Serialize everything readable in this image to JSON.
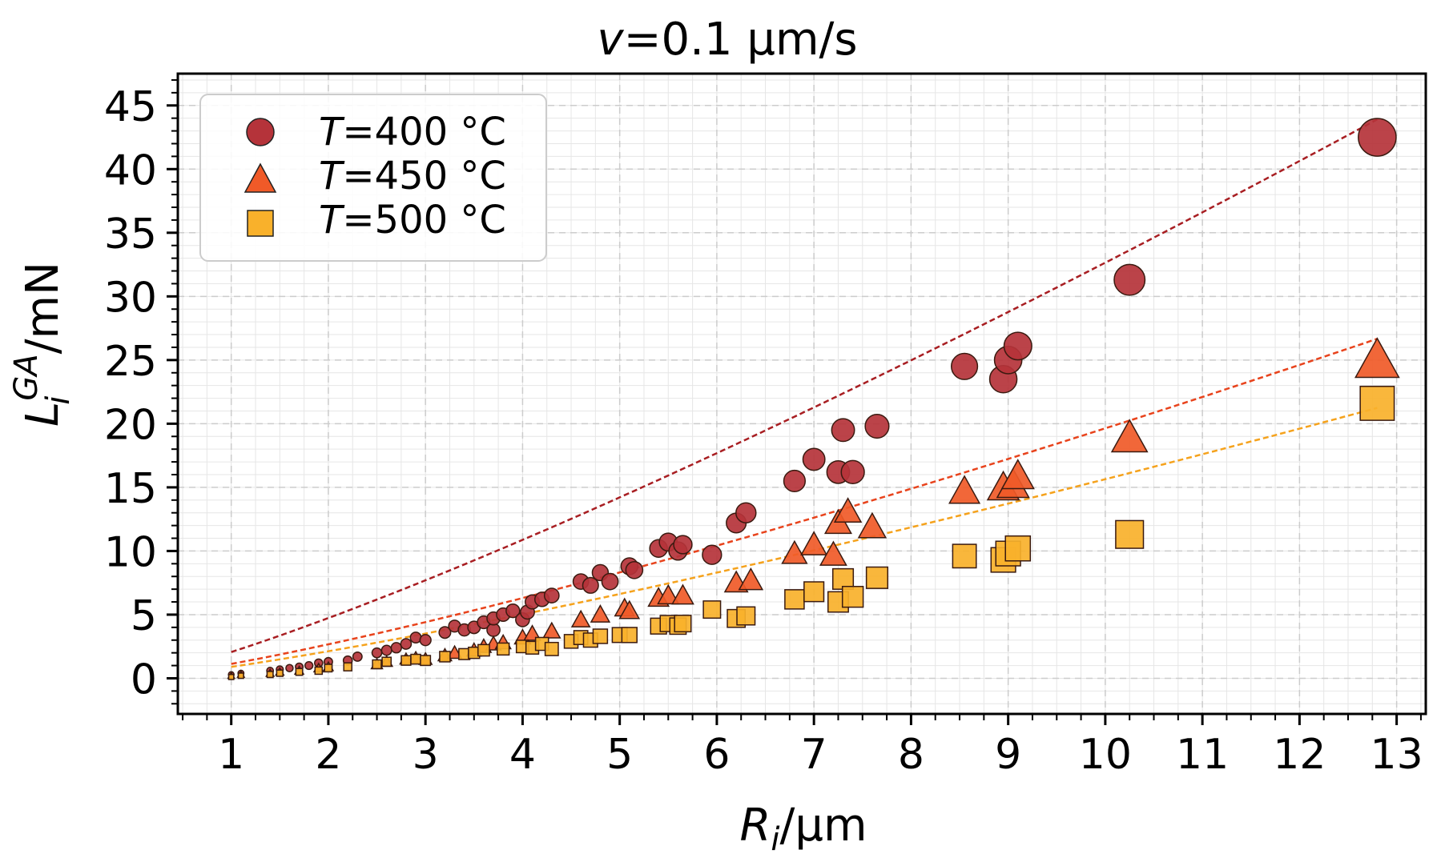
{
  "chart_data": {
    "type": "scatter",
    "title": {
      "italic": "v",
      "rest": "=0.1 μm/s"
    },
    "xlabel": {
      "italic": "R",
      "sub": "i",
      "rest": "/μm"
    },
    "ylabel": {
      "italic": "L",
      "sub": "i",
      "sup": "GA",
      "rest": "/mN"
    },
    "xlim": [
      0.45,
      13.3
    ],
    "ylim": [
      -2.8,
      47.5
    ],
    "xticks": [
      1,
      2,
      3,
      4,
      5,
      6,
      7,
      8,
      9,
      10,
      11,
      12,
      13
    ],
    "xtick_labels": [
      "1",
      "2",
      "3",
      "4",
      "5",
      "6",
      "7",
      "8",
      "9",
      "10",
      "11",
      "12",
      "13"
    ],
    "yticks": [
      0,
      5,
      10,
      15,
      20,
      25,
      30,
      35,
      40,
      45
    ],
    "ytick_labels": [
      "0",
      "5",
      "10",
      "15",
      "20",
      "25",
      "30",
      "35",
      "40",
      "45"
    ],
    "x_minor_step": 0.25,
    "y_minor_step": 1,
    "grid": true,
    "legend_position": "top-left",
    "series": [
      {
        "name": "T=400 °C",
        "label_italic": "T",
        "label_rest": "=400 °C",
        "marker": "circle",
        "color": "#b5333a",
        "fit_color": "#a81e22",
        "fit": {
          "a": 2.06,
          "b": 1.2
        },
        "points": [
          [
            1.0,
            0.3
          ],
          [
            1.1,
            0.4
          ],
          [
            1.4,
            0.6
          ],
          [
            1.5,
            0.7
          ],
          [
            1.6,
            0.8
          ],
          [
            1.7,
            0.9
          ],
          [
            1.8,
            1.0
          ],
          [
            1.9,
            1.2
          ],
          [
            2.0,
            1.3
          ],
          [
            2.2,
            1.4
          ],
          [
            2.3,
            1.7
          ],
          [
            2.5,
            2.0
          ],
          [
            2.6,
            2.2
          ],
          [
            2.7,
            2.4
          ],
          [
            2.8,
            2.7
          ],
          [
            2.9,
            3.2
          ],
          [
            3.0,
            3.0
          ],
          [
            3.2,
            3.6
          ],
          [
            3.3,
            4.1
          ],
          [
            3.4,
            3.8
          ],
          [
            3.5,
            4.0
          ],
          [
            3.6,
            4.4
          ],
          [
            3.7,
            3.8
          ],
          [
            3.7,
            4.7
          ],
          [
            3.8,
            5.0
          ],
          [
            3.9,
            5.3
          ],
          [
            4.0,
            4.6
          ],
          [
            4.05,
            5.2
          ],
          [
            4.1,
            6.0
          ],
          [
            4.2,
            6.2
          ],
          [
            4.3,
            6.5
          ],
          [
            4.6,
            7.6
          ],
          [
            4.7,
            7.3
          ],
          [
            4.8,
            8.3
          ],
          [
            4.9,
            7.6
          ],
          [
            5.1,
            8.8
          ],
          [
            5.15,
            8.5
          ],
          [
            5.4,
            10.2
          ],
          [
            5.5,
            10.7
          ],
          [
            5.6,
            10.0
          ],
          [
            5.65,
            10.5
          ],
          [
            5.95,
            9.7
          ],
          [
            6.2,
            12.2
          ],
          [
            6.3,
            13.0
          ],
          [
            6.8,
            15.5
          ],
          [
            7.0,
            17.2
          ],
          [
            7.25,
            16.2
          ],
          [
            7.3,
            19.5
          ],
          [
            7.4,
            16.2
          ],
          [
            7.65,
            19.8
          ],
          [
            8.55,
            24.5
          ],
          [
            8.95,
            23.5
          ],
          [
            9.0,
            25.0
          ],
          [
            9.1,
            26.1
          ],
          [
            10.25,
            31.3
          ],
          [
            12.8,
            42.5
          ]
        ]
      },
      {
        "name": "T=450 °C",
        "label_italic": "T",
        "label_rest": "=450 °C",
        "marker": "triangle",
        "color": "#f05a28",
        "fit_color": "#e8431c",
        "fit": {
          "a": 1.13,
          "b": 1.24
        },
        "points": [
          [
            1.0,
            0.2
          ],
          [
            1.1,
            0.3
          ],
          [
            1.4,
            0.4
          ],
          [
            1.5,
            0.5
          ],
          [
            1.7,
            0.6
          ],
          [
            1.9,
            0.8
          ],
          [
            2.0,
            0.9
          ],
          [
            2.5,
            1.1
          ],
          [
            2.6,
            1.3
          ],
          [
            2.8,
            1.5
          ],
          [
            2.9,
            1.6
          ],
          [
            3.0,
            1.5
          ],
          [
            3.2,
            1.8
          ],
          [
            3.3,
            2.0
          ],
          [
            3.5,
            2.2
          ],
          [
            3.6,
            2.5
          ],
          [
            3.7,
            2.7
          ],
          [
            3.8,
            2.8
          ],
          [
            4.0,
            3.2
          ],
          [
            4.1,
            3.5
          ],
          [
            4.3,
            3.7
          ],
          [
            4.6,
            4.6
          ],
          [
            4.8,
            5.0
          ],
          [
            5.05,
            5.5
          ],
          [
            5.1,
            5.3
          ],
          [
            5.4,
            6.3
          ],
          [
            5.5,
            6.5
          ],
          [
            5.65,
            6.5
          ],
          [
            6.2,
            7.5
          ],
          [
            6.35,
            7.7
          ],
          [
            6.8,
            9.8
          ],
          [
            7.0,
            10.5
          ],
          [
            7.2,
            9.7
          ],
          [
            7.25,
            12.2
          ],
          [
            7.35,
            13.1
          ],
          [
            7.6,
            11.9
          ],
          [
            8.55,
            14.7
          ],
          [
            8.95,
            15.0
          ],
          [
            9.05,
            15.2
          ],
          [
            9.1,
            15.9
          ],
          [
            10.25,
            18.9
          ],
          [
            12.8,
            25.0
          ]
        ]
      },
      {
        "name": "T=500 °C",
        "label_italic": "T",
        "label_rest": "=500 °C",
        "marker": "square",
        "color": "#f9b12b",
        "fit_color": "#f5a21c",
        "fit": {
          "a": 0.9,
          "b": 1.24
        },
        "points": [
          [
            1.0,
            0.1
          ],
          [
            1.1,
            0.2
          ],
          [
            1.4,
            0.3
          ],
          [
            1.5,
            0.4
          ],
          [
            1.7,
            0.5
          ],
          [
            1.9,
            0.6
          ],
          [
            2.0,
            0.8
          ],
          [
            2.2,
            0.9
          ],
          [
            2.5,
            1.1
          ],
          [
            2.6,
            1.3
          ],
          [
            2.8,
            1.4
          ],
          [
            2.9,
            1.5
          ],
          [
            3.0,
            1.4
          ],
          [
            3.2,
            1.7
          ],
          [
            3.4,
            1.9
          ],
          [
            3.5,
            2.0
          ],
          [
            3.6,
            2.2
          ],
          [
            3.8,
            2.3
          ],
          [
            4.0,
            2.5
          ],
          [
            4.1,
            2.4
          ],
          [
            4.2,
            2.7
          ],
          [
            4.3,
            2.3
          ],
          [
            4.5,
            2.9
          ],
          [
            4.6,
            3.2
          ],
          [
            4.7,
            3.0
          ],
          [
            4.8,
            3.3
          ],
          [
            5.0,
            3.4
          ],
          [
            5.1,
            3.4
          ],
          [
            5.4,
            4.1
          ],
          [
            5.5,
            4.3
          ],
          [
            5.6,
            4.1
          ],
          [
            5.65,
            4.3
          ],
          [
            5.95,
            5.4
          ],
          [
            6.2,
            4.7
          ],
          [
            6.3,
            4.9
          ],
          [
            6.8,
            6.2
          ],
          [
            7.0,
            6.8
          ],
          [
            7.25,
            6.0
          ],
          [
            7.3,
            7.8
          ],
          [
            7.4,
            6.4
          ],
          [
            7.65,
            7.9
          ],
          [
            8.55,
            9.6
          ],
          [
            8.95,
            9.3
          ],
          [
            9.0,
            9.8
          ],
          [
            9.1,
            10.2
          ],
          [
            10.25,
            11.3
          ],
          [
            12.8,
            21.6
          ]
        ]
      }
    ]
  }
}
